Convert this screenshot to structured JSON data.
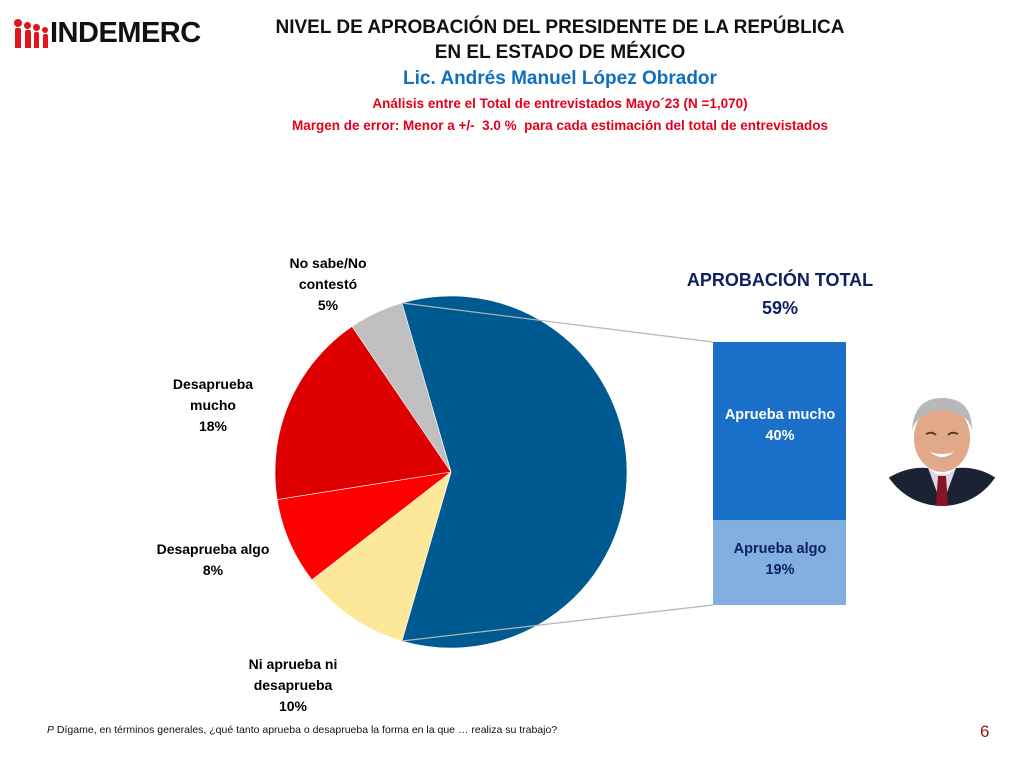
{
  "logo": {
    "text": "INDEMERC"
  },
  "header": {
    "title_line1": "NIVEL DE APROBACIÓN DEL PRESIDENTE DE LA REPÚBLICA",
    "title_line2": "EN EL ESTADO DE MÉXICO",
    "subject": "Lic. Andrés Manuel López Obrador",
    "analysis": "Análisis entre el Total de entrevistados Mayo´23 (N =1,070)",
    "margin": "Margen de error: Menor a +/-  3.0 %  para cada estimación del total de entrevistados"
  },
  "chart_data": {
    "type": "pie",
    "title": "NIVEL DE APROBACIÓN DEL PRESIDENTE DE LA REPÚBLICA EN EL ESTADO DE MÉXICO",
    "slices": [
      {
        "name": "Aprobación total",
        "label_line1": "",
        "value": 59,
        "color": "#005a92"
      },
      {
        "name": "Ni aprueba ni desaprueba",
        "label_line1": "Ni aprueba ni",
        "label_line2": "desaprueba",
        "value_label": "10%",
        "value": 10,
        "color": "#fde89a",
        "label_color": "#8b2500"
      },
      {
        "name": "Desaprueba algo",
        "label_line1": "Desaprueba algo",
        "value_label": "8%",
        "value": 8,
        "color": "#ff0000",
        "label_color": "#e3001b"
      },
      {
        "name": "Desaprueba mucho",
        "label_line1": "Desaprueba",
        "label_line2": "mucho",
        "value_label": "18%",
        "value": 18,
        "color": "#de0000",
        "label_color": "#e3001b"
      },
      {
        "name": "No sabe/No contestó",
        "label_line1": "No sabe/No",
        "label_line2": "contestó",
        "value_label": "5%",
        "value": 5,
        "color": "#c0c0c0",
        "label_color": "#a6a6a6"
      }
    ],
    "breakdown": {
      "title": "APROBACIÓN TOTAL",
      "total_label": "59%",
      "total": 59,
      "segments": [
        {
          "name": "Aprueba mucho",
          "value_label": "40%",
          "value": 40,
          "color": "#1a6fc8",
          "text_color": "#ffffff"
        },
        {
          "name": "Aprueba algo",
          "value_label": "19%",
          "value": 19,
          "color": "#82aee0",
          "text_color": "#0f2060"
        }
      ]
    }
  },
  "footer": {
    "prefix": "P",
    "question": " Dígame, en términos generales, ¿qué tanto aprueba o desaprueba la forma en la que … realiza su trabajo?",
    "page_number": "6"
  }
}
